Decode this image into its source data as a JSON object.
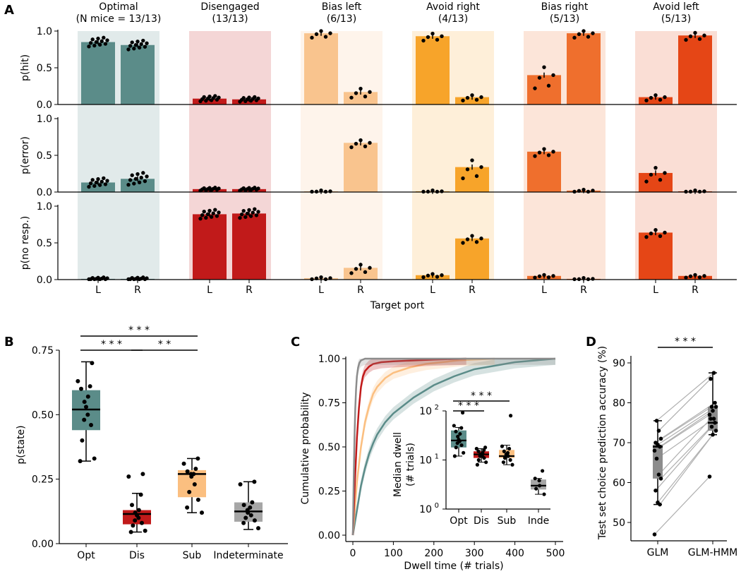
{
  "colors": {
    "optimal": "#5b8c89",
    "disengaged": "#c11a1a",
    "bias_left": "#f9c48e",
    "avoid_right": "#f7a42a",
    "bias_right": "#ef6f2d",
    "avoid_left": "#e54616",
    "sub": "#fbbf80",
    "indeterminate": "#a6a6a6",
    "glm": "#8c8c8c",
    "axis": "#000000"
  },
  "panel_labels": [
    "A",
    "B",
    "C",
    "D"
  ],
  "chart_data": [
    {
      "panel": "A",
      "type": "bar",
      "xlabel": "Target port",
      "port_labels": [
        "L",
        "R"
      ],
      "row_ylabels": [
        "p(hit)",
        "p(error)",
        "p(no resp.)"
      ],
      "yticks": [
        "0.0",
        "0.5",
        "1.0"
      ],
      "ylim": [
        0,
        1
      ],
      "states": [
        {
          "key": "optimal",
          "title1": "Optimal",
          "title2": "(N mice = 13/13)",
          "hit": [
            0.85,
            0.81
          ],
          "error": [
            0.13,
            0.18
          ],
          "noresp": [
            0.01,
            0.01
          ]
        },
        {
          "key": "disengaged",
          "title1": "Disengaged",
          "title2": "(13/13)",
          "hit": [
            0.08,
            0.07
          ],
          "error": [
            0.04,
            0.04
          ],
          "noresp": [
            0.89,
            0.9
          ]
        },
        {
          "key": "bias_left",
          "title1": "Bias left",
          "title2": "(6/13)",
          "hit": [
            0.97,
            0.17
          ],
          "error": [
            0.01,
            0.67
          ],
          "noresp": [
            0.02,
            0.16
          ]
        },
        {
          "key": "avoid_right",
          "title1": "Avoid right",
          "title2": "(4/13)",
          "hit": [
            0.93,
            0.1
          ],
          "error": [
            0.01,
            0.34
          ],
          "noresp": [
            0.06,
            0.56
          ]
        },
        {
          "key": "bias_right",
          "title1": "Bias right",
          "title2": "(5/13)",
          "hit": [
            0.4,
            0.97
          ],
          "error": [
            0.55,
            0.02
          ],
          "noresp": [
            0.05,
            0.01
          ]
        },
        {
          "key": "avoid_left",
          "title1": "Avoid left",
          "title2": "(5/13)",
          "hit": [
            0.1,
            0.94
          ],
          "error": [
            0.26,
            0.01
          ],
          "noresp": [
            0.64,
            0.05
          ]
        }
      ]
    },
    {
      "panel": "B",
      "type": "box",
      "ylabel": "p(state)",
      "ylim": [
        0,
        0.75
      ],
      "yticks": [
        "0.00",
        "0.25",
        "0.50",
        "0.75"
      ],
      "categories": [
        "Opt",
        "Dis",
        "Sub",
        "Indeterminate"
      ],
      "boxes": [
        {
          "min": 0.32,
          "q1": 0.44,
          "median": 0.52,
          "q3": 0.595,
          "max": 0.705,
          "points": [
            0.7,
            0.63,
            0.61,
            0.6,
            0.57,
            0.55,
            0.53,
            0.5,
            0.48,
            0.46,
            0.4,
            0.33,
            0.32
          ]
        },
        {
          "min": 0.045,
          "q1": 0.075,
          "median": 0.115,
          "q3": 0.13,
          "max": 0.195,
          "points": [
            0.27,
            0.26,
            0.19,
            0.15,
            0.13,
            0.12,
            0.11,
            0.1,
            0.09,
            0.08,
            0.07,
            0.05,
            0.045
          ]
        },
        {
          "min": 0.12,
          "q1": 0.18,
          "median": 0.27,
          "q3": 0.285,
          "max": 0.33,
          "points": [
            0.33,
            0.31,
            0.29,
            0.28,
            0.27,
            0.27,
            0.26,
            0.23,
            0.2,
            0.17,
            0.14,
            0.12
          ]
        },
        {
          "min": 0.055,
          "q1": 0.085,
          "median": 0.125,
          "q3": 0.16,
          "max": 0.24,
          "points": [
            0.24,
            0.23,
            0.16,
            0.15,
            0.14,
            0.13,
            0.12,
            0.11,
            0.1,
            0.09,
            0.08,
            0.06
          ]
        }
      ],
      "significance": [
        {
          "from": 0,
          "to": 2,
          "label": "* * *"
        },
        {
          "from": 0,
          "to": 1,
          "label": "* * *"
        },
        {
          "from": 1,
          "to": 2,
          "label": "* *"
        }
      ]
    },
    {
      "panel": "C",
      "type": "line",
      "xlabel": "Dwell time (# trials)",
      "ylabel": "Cumulative probability",
      "xlim": [
        0,
        500
      ],
      "ylim": [
        0,
        1
      ],
      "xticks": [
        "0",
        "100",
        "200",
        "300",
        "400",
        "500"
      ],
      "yticks": [
        "0.00",
        "0.25",
        "0.50",
        "0.75",
        "1.00"
      ],
      "series": [
        {
          "name": "Indeterminate",
          "color": "#8c8c8c",
          "x": [
            0,
            2,
            4,
            6,
            8,
            10,
            13,
            16,
            20,
            25,
            30,
            40,
            60,
            100,
            500
          ],
          "y": [
            0,
            0.3,
            0.55,
            0.72,
            0.83,
            0.9,
            0.95,
            0.975,
            0.99,
            0.995,
            1,
            1,
            1,
            1,
            1
          ]
        },
        {
          "name": "Disengaged",
          "color": "#c11a1a",
          "x": [
            0,
            5,
            10,
            15,
            20,
            25,
            30,
            40,
            50,
            70,
            100,
            150,
            200,
            280
          ],
          "y": [
            0,
            0.3,
            0.55,
            0.72,
            0.84,
            0.9,
            0.93,
            0.955,
            0.97,
            0.98,
            0.985,
            0.99,
            0.995,
            1
          ]
        },
        {
          "name": "Sub",
          "color": "#fbbf80",
          "x": [
            0,
            10,
            20,
            30,
            40,
            50,
            60,
            80,
            100,
            140,
            180,
            220,
            260,
            300,
            350
          ],
          "y": [
            0,
            0.3,
            0.5,
            0.64,
            0.73,
            0.8,
            0.84,
            0.89,
            0.92,
            0.95,
            0.97,
            0.98,
            0.99,
            0.995,
            1
          ]
        },
        {
          "name": "Opt",
          "color": "#5b8c89",
          "x": [
            0,
            10,
            20,
            30,
            40,
            50,
            60,
            80,
            100,
            150,
            200,
            250,
            300,
            350,
            400,
            450,
            500
          ],
          "y": [
            0,
            0.14,
            0.28,
            0.38,
            0.46,
            0.52,
            0.57,
            0.64,
            0.69,
            0.78,
            0.85,
            0.9,
            0.94,
            0.96,
            0.98,
            0.99,
            1
          ]
        }
      ],
      "inset": {
        "ylabel1": "Median dwell",
        "ylabel2": "(# trials)",
        "categories": [
          "Opt",
          "Dis",
          "Sub",
          "Inde"
        ],
        "ylim_log": [
          1,
          100
        ],
        "yticks": [
          "10",
          "10",
          "10"
        ],
        "yexp": [
          "0",
          "1",
          "2"
        ],
        "boxes": [
          {
            "min": 12,
            "q1": 18,
            "median": 25,
            "q3": 40,
            "max": 46,
            "points": [
              92,
              50,
              45,
              38,
              34,
              30,
              26,
              24,
              22,
              20,
              18,
              14,
              12
            ]
          },
          {
            "min": 9,
            "q1": 11,
            "median": 13,
            "q3": 15,
            "max": 17,
            "points": [
              18,
              17,
              16,
              15,
              14,
              13,
              13,
              12,
              12,
              11,
              10,
              9,
              8
            ]
          },
          {
            "min": 8,
            "q1": 11,
            "median": 12,
            "q3": 16,
            "max": 20,
            "points": [
              80,
              19,
              17,
              15,
              14,
              13,
              12,
              12,
              11,
              10,
              9,
              8
            ]
          },
          {
            "min": 2,
            "q1": 2.5,
            "median": 3,
            "q3": 4,
            "max": 4.2,
            "points": [
              6,
              4.2,
              3.8,
              3,
              2.6,
              2
            ]
          }
        ],
        "significance": [
          {
            "from": 0,
            "to": 2,
            "label": "* * *"
          },
          {
            "from": 0,
            "to": 1,
            "label": "* * *"
          }
        ]
      }
    },
    {
      "panel": "D",
      "type": "box",
      "ylabel": "Test set choice prediction accuracy (%)",
      "ylim": [
        45,
        90
      ],
      "yticks": [
        "50",
        "60",
        "70",
        "80",
        "90"
      ],
      "categories": [
        "GLM",
        "GLM-HMM"
      ],
      "boxes": [
        {
          "min": 54.5,
          "q1": 61,
          "median": 69,
          "q3": 69.5,
          "max": 75.5
        },
        {
          "min": 72,
          "q1": 73,
          "median": 75,
          "q3": 79,
          "max": 87.5
        }
      ],
      "pairs": [
        [
          47,
          61.5
        ],
        [
          54.5,
          72
        ],
        [
          55,
          73
        ],
        [
          58,
          74
        ],
        [
          61,
          75
        ],
        [
          62,
          76
        ],
        [
          66,
          76
        ],
        [
          68,
          77
        ],
        [
          69,
          78
        ],
        [
          69.5,
          79
        ],
        [
          70,
          79
        ],
        [
          71,
          80
        ],
        [
          73,
          86
        ],
        [
          75.5,
          87.5
        ]
      ],
      "significance": [
        {
          "from": 0,
          "to": 1,
          "label": "* * *"
        }
      ]
    }
  ]
}
